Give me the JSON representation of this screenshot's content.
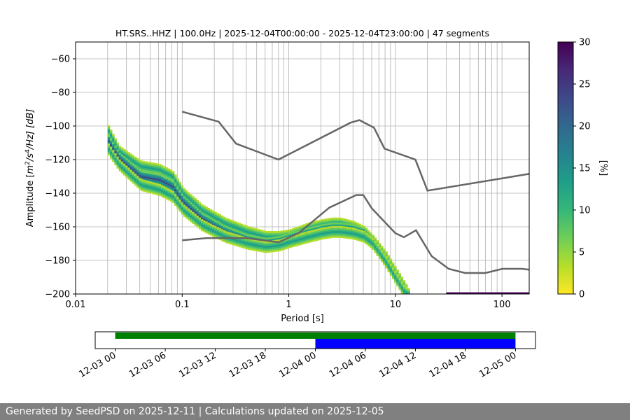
{
  "chart_data": {
    "type": "heatmap",
    "title": "HT.SRS..HHZ | 100.0Hz | 2025-12-04T00:00:00 - 2025-12-04T23:00:00 | 47 segments",
    "xlabel": "Period [s]",
    "ylabel_parts": {
      "pre": "Amplitude [",
      "m": "m",
      "exp2": "2",
      "s": "/s",
      "exp4": "4",
      "post": "/Hz] [dB]"
    },
    "x_scale": "log",
    "xlim": [
      0.01,
      180
    ],
    "ylim": [
      -200,
      -50
    ],
    "x_ticks": [
      0.01,
      0.1,
      1,
      10,
      100
    ],
    "x_tick_labels": [
      "0.01",
      "0.1",
      "1",
      "10",
      "100"
    ],
    "y_ticks": [
      -60,
      -80,
      -100,
      -120,
      -140,
      -160,
      -180,
      -200
    ],
    "y_tick_labels": [
      "−60",
      "−80",
      "−100",
      "−120",
      "−140",
      "−160",
      "−180",
      "−200"
    ],
    "colorbar": {
      "label": "[%]",
      "range": [
        0,
        30
      ],
      "ticks": [
        0,
        5,
        10,
        15,
        20,
        25,
        30
      ],
      "tick_labels": [
        "0",
        "5",
        "10",
        "15",
        "20",
        "25",
        "30"
      ],
      "colors": [
        "#fde725",
        "#b5de2b",
        "#6ece58",
        "#35b779",
        "#1f9e89",
        "#26828e",
        "#31688e",
        "#3e4989",
        "#482878",
        "#440154"
      ]
    },
    "noise_models": [
      {
        "name": "NHNM",
        "period": [
          0.1,
          0.22,
          0.32,
          0.8,
          3.8,
          4.6,
          6.3,
          7.9,
          15.4,
          20,
          180
        ],
        "db": [
          -91.5,
          -97.4,
          -110.5,
          -120,
          -98,
          -96.5,
          -101,
          -113.5,
          -120,
          -138.5,
          -128.5
        ]
      },
      {
        "name": "NLNM",
        "period": [
          0.1,
          0.17,
          0.4,
          0.8,
          1.24,
          2.4,
          4.3,
          5.0,
          6.0,
          10.0,
          12.0,
          15.6,
          21.9,
          31.6,
          45,
          70,
          101,
          154,
          180
        ],
        "db": [
          -168,
          -166.7,
          -166.7,
          -169.2,
          -163.7,
          -148.6,
          -141.1,
          -141.1,
          -149,
          -163.8,
          -166.2,
          -162.1,
          -177.5,
          -185,
          -187.5,
          -187.5,
          -185,
          -185,
          -185.5
        ]
      }
    ],
    "psd_bands": [
      {
        "period": [
          0.02,
          0.025,
          0.04,
          0.06,
          0.08,
          0.1,
          0.15,
          0.25,
          0.4,
          0.6,
          0.8,
          1.0,
          1.5,
          2.0,
          2.5,
          3.0,
          4.0,
          5.0,
          6.0,
          8.0,
          10.0,
          12.0,
          13.0
        ],
        "db": [
          -103,
          -115,
          -124,
          -126,
          -130,
          -140,
          -150,
          -158,
          -163,
          -166,
          -166,
          -165,
          -161,
          -159,
          -158,
          -158,
          -160,
          -163,
          -168,
          -178,
          -188,
          -196,
          -200
        ]
      },
      {
        "period": [
          0.02,
          0.025,
          0.04,
          0.06,
          0.08,
          0.1,
          0.15,
          0.25,
          0.4,
          0.6,
          0.8,
          1.0,
          1.5,
          2.0,
          2.5,
          3.0,
          4.0,
          5.0,
          6.0,
          8.0,
          10.0,
          12.0,
          13.0
        ],
        "db": [
          -109,
          -119,
          -130,
          -132,
          -136,
          -145,
          -155,
          -163,
          -168,
          -170,
          -169,
          -167,
          -164,
          -162,
          -161,
          -161,
          -162,
          -164,
          -169,
          -180,
          -190,
          -198,
          -200
        ]
      },
      {
        "period": [
          0.02,
          0.025,
          0.04,
          0.06,
          0.08,
          0.1,
          0.15,
          0.25,
          0.4,
          0.6,
          0.8,
          1.0,
          1.5,
          2.0,
          2.5,
          3.0,
          4.0,
          5.0,
          6.0,
          8.0,
          10.0,
          12.0,
          13.0
        ],
        "db": [
          -114,
          -123,
          -135,
          -138,
          -142,
          -150,
          -159,
          -166,
          -170,
          -172,
          -171,
          -169,
          -166,
          -164,
          -163,
          -163,
          -164,
          -166,
          -170,
          -181,
          -191,
          -199,
          -200
        ]
      }
    ],
    "time_axis": {
      "tick_labels": [
        "12-03 00",
        "12-03 06",
        "12-03 12",
        "12-03 18",
        "12-04 00",
        "12-04 06",
        "12-04 12",
        "12-04 18",
        "12-05 00"
      ],
      "tick_hours": [
        0,
        6,
        12,
        18,
        24,
        30,
        36,
        42,
        48
      ],
      "range_hours": [
        -2.4,
        50.4
      ],
      "bars": [
        {
          "name": "available-data",
          "start_hour": 0,
          "end_hour": 48,
          "color": "#008000"
        },
        {
          "name": "used-data",
          "start_hour": 24,
          "end_hour": 48,
          "color": "#0000ff"
        }
      ]
    }
  },
  "footer": {
    "text": "Generated by SeedPSD on 2025-12-11 | Calculations updated on 2025-12-05"
  }
}
